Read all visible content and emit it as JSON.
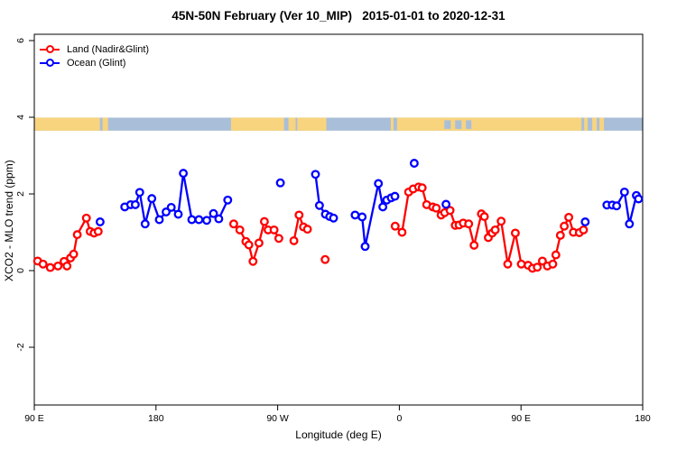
{
  "chart_data": {
    "type": "line",
    "title": "45N-50N February (Ver 10_MIP)   2015-01-01 to 2020-12-31",
    "xlabel": "Longitude (deg E)",
    "ylabel": "XCO2 - MLO trend (ppm)",
    "xlim": [
      -270,
      180
    ],
    "ylim": [
      -3.5,
      6.2
    ],
    "grid": false,
    "x_ticks": [
      {
        "value": -270,
        "label": "90 E"
      },
      {
        "value": -180,
        "label": "180"
      },
      {
        "value": -90,
        "label": "90 W"
      },
      {
        "value": 0,
        "label": "0"
      },
      {
        "value": 90,
        "label": "90 E"
      },
      {
        "value": 180,
        "label": "180"
      }
    ],
    "y_ticks": [
      {
        "value": -2,
        "label": "-2"
      },
      {
        "value": 0,
        "label": "0"
      },
      {
        "value": 2,
        "label": "2"
      },
      {
        "value": 4,
        "label": "4"
      },
      {
        "value": 6,
        "label": "6"
      }
    ],
    "legend": {
      "position": "top-left",
      "entries": [
        {
          "label": "Land (Nadir&Glint)",
          "color": "#ff0000"
        },
        {
          "label": "Ocean (Glint)",
          "color": "#0000ff"
        }
      ]
    },
    "map_band": {
      "y_top_value": 3.99,
      "y_bottom_value": 3.65,
      "ocean_color": "#a9bed8",
      "land_color": "#f8d47e",
      "land_segments": [
        [
          -270,
          -221.5
        ],
        [
          -219.5,
          -215.5
        ],
        [
          -124.5,
          -85.3
        ],
        [
          -82,
          -76.7
        ],
        [
          -75.5,
          -54
        ],
        [
          -6.3,
          -4.3
        ],
        [
          -1.7,
          134.7
        ],
        [
          136.7,
          139.3
        ],
        [
          142.7,
          146
        ],
        [
          148,
          151.3
        ]
      ],
      "ocean_overlays": [
        [
          33.3,
          38
        ],
        [
          41.3,
          46
        ],
        [
          49.3,
          53.3
        ]
      ]
    },
    "series": [
      {
        "name": "Land (Nadir&Glint)",
        "color": "#ff0000",
        "segments": [
          [
            [
              -267.5,
              0.25
            ],
            [
              -263.5,
              0.17
            ],
            [
              -258.2,
              0.08
            ],
            [
              -252.5,
              0.12
            ],
            [
              -248,
              0.24
            ],
            [
              -245.8,
              0.12
            ],
            [
              -243.2,
              0.33
            ],
            [
              -240.9,
              0.43
            ],
            [
              -238.2,
              0.94
            ],
            [
              -231.5,
              1.37
            ],
            [
              -228.7,
              1.02
            ],
            [
              -225.8,
              0.98
            ],
            [
              -222.7,
              1.02
            ]
          ],
          [
            [
              -122.5,
              1.22
            ],
            [
              -118,
              1.06
            ],
            [
              -113.5,
              0.76
            ],
            [
              -111.3,
              0.67
            ],
            [
              -108.2,
              0.24
            ],
            [
              -103.8,
              0.72
            ],
            [
              -99.8,
              1.28
            ],
            [
              -97.1,
              1.06
            ],
            [
              -92.7,
              1.06
            ],
            [
              -89.1,
              0.84
            ]
          ],
          [
            [
              -78,
              0.78
            ],
            [
              -74.2,
              1.45
            ],
            [
              -70.9,
              1.14
            ],
            [
              -68,
              1.08
            ]
          ],
          [
            [
              -54.9,
              0.29
            ]
          ],
          [
            [
              -3.1,
              1.16
            ],
            [
              2,
              1.0
            ],
            [
              6.9,
              2.05
            ],
            [
              10.2,
              2.13
            ],
            [
              14.2,
              2.18
            ],
            [
              16.9,
              2.16
            ],
            [
              20.2,
              1.72
            ],
            [
              24.7,
              1.66
            ],
            [
              27.3,
              1.63
            ],
            [
              30.9,
              1.45
            ],
            [
              33.5,
              1.51
            ],
            [
              37.5,
              1.57
            ],
            [
              41.3,
              1.18
            ],
            [
              44.2,
              1.19
            ],
            [
              47.3,
              1.24
            ],
            [
              51.3,
              1.22
            ],
            [
              55.3,
              0.66
            ],
            [
              60.7,
              1.48
            ],
            [
              62.9,
              1.41
            ],
            [
              65.8,
              0.86
            ],
            [
              68.7,
              0.98
            ],
            [
              70.9,
              1.06
            ],
            [
              75.3,
              1.29
            ],
            [
              80.2,
              0.17
            ],
            [
              85.8,
              0.98
            ],
            [
              90.2,
              0.17
            ],
            [
              95.3,
              0.14
            ],
            [
              98.5,
              0.06
            ],
            [
              102,
              0.09
            ],
            [
              105.8,
              0.25
            ],
            [
              109.5,
              0.12
            ],
            [
              113.5,
              0.17
            ],
            [
              115.8,
              0.41
            ],
            [
              119.1,
              0.92
            ],
            [
              122,
              1.16
            ],
            [
              125.3,
              1.39
            ],
            [
              128.7,
              1.0
            ],
            [
              133.1,
              0.99
            ],
            [
              136.2,
              1.06
            ]
          ]
        ]
      },
      {
        "name": "Ocean (Glint)",
        "color": "#0000ff",
        "segments": [
          [
            [
              -221.3,
              1.27
            ]
          ],
          [
            [
              -203.1,
              1.66
            ],
            [
              -198.7,
              1.72
            ],
            [
              -195.3,
              1.72
            ],
            [
              -192,
              2.04
            ],
            [
              -188,
              1.22
            ],
            [
              -183.1,
              1.88
            ],
            [
              -177.5,
              1.33
            ],
            [
              -172.5,
              1.53
            ],
            [
              -168.7,
              1.65
            ],
            [
              -163.5,
              1.47
            ],
            [
              -159.8,
              2.54
            ],
            [
              -153.5,
              1.33
            ],
            [
              -148.2,
              1.33
            ],
            [
              -142.5,
              1.31
            ],
            [
              -137.5,
              1.49
            ],
            [
              -133.5,
              1.35
            ],
            [
              -126.9,
              1.84
            ]
          ],
          [
            [
              -88,
              2.29
            ]
          ],
          [
            [
              -62,
              2.51
            ],
            [
              -59.1,
              1.7
            ],
            [
              -54.7,
              1.47
            ],
            [
              -51.5,
              1.41
            ],
            [
              -48.7,
              1.37
            ]
          ],
          [
            [
              -32.7,
              1.45
            ],
            [
              -27.5,
              1.4
            ],
            [
              -25.3,
              0.63
            ],
            [
              -15.5,
              2.27
            ],
            [
              -12.2,
              1.66
            ],
            [
              -9.3,
              1.84
            ],
            [
              -6,
              1.9
            ],
            [
              -3.3,
              1.94
            ]
          ],
          [
            [
              11,
              2.8
            ]
          ],
          [
            [
              34.5,
              1.73
            ]
          ],
          [
            [
              137.5,
              1.27
            ]
          ],
          [
            [
              153.5,
              1.71
            ],
            [
              157.5,
              1.71
            ],
            [
              160.7,
              1.69
            ],
            [
              166.5,
              2.05
            ],
            [
              170.2,
              1.22
            ],
            [
              175.3,
              1.96
            ],
            [
              176.9,
              1.87
            ]
          ]
        ]
      }
    ]
  }
}
